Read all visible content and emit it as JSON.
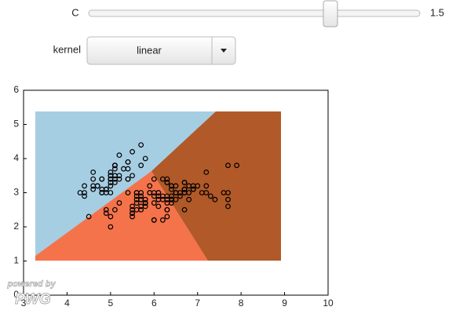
{
  "controls": {
    "C_label": "C",
    "C_value": 1.5,
    "kernel_label": "kernel",
    "kernel_value": "linear"
  },
  "watermark": {
    "line1": "powered by",
    "line2": "PWG"
  },
  "chart_data": {
    "type": "scatter",
    "color": "#000000",
    "xlim": [
      3,
      10
    ],
    "ylim": [
      0,
      6
    ],
    "xticks": [
      3,
      4,
      5,
      6,
      7,
      8,
      9,
      10
    ],
    "yticks": [
      0,
      1,
      2,
      3,
      4,
      5,
      6
    ],
    "x": [
      5.1,
      4.9,
      4.7,
      4.6,
      5.0,
      5.4,
      4.6,
      5.0,
      4.4,
      4.9,
      5.4,
      4.8,
      4.8,
      4.3,
      5.8,
      5.7,
      5.4,
      5.1,
      5.7,
      5.1,
      5.4,
      5.1,
      4.6,
      5.1,
      4.8,
      5.0,
      5.0,
      5.2,
      5.2,
      4.7,
      4.8,
      5.4,
      5.2,
      5.5,
      4.9,
      5.0,
      5.5,
      4.9,
      4.4,
      5.1,
      5.0,
      4.5,
      4.4,
      5.0,
      5.1,
      4.8,
      5.1,
      4.6,
      5.3,
      5.0,
      7.0,
      6.4,
      6.9,
      5.5,
      6.5,
      5.7,
      6.3,
      4.9,
      6.6,
      5.2,
      5.0,
      5.9,
      6.0,
      6.1,
      5.6,
      6.7,
      5.6,
      5.8,
      6.2,
      5.6,
      5.9,
      6.1,
      6.3,
      6.1,
      6.4,
      6.6,
      6.8,
      6.7,
      6.0,
      5.7,
      5.5,
      5.5,
      5.8,
      6.0,
      5.4,
      6.0,
      6.7,
      6.3,
      5.6,
      5.5,
      5.5,
      6.1,
      5.8,
      5.0,
      5.6,
      5.7,
      5.7,
      6.2,
      5.1,
      5.7,
      6.3,
      5.8,
      7.1,
      6.3,
      6.5,
      7.6,
      4.9,
      7.3,
      6.7,
      7.2,
      6.5,
      6.4,
      6.8,
      5.7,
      5.8,
      6.4,
      6.5,
      7.7,
      7.7,
      6.0,
      6.9,
      5.6,
      7.7,
      6.3,
      6.7,
      7.2,
      6.2,
      6.1,
      6.4,
      7.2,
      7.4,
      7.9,
      6.4,
      6.3,
      6.1,
      7.7,
      6.3,
      6.4,
      6.0,
      6.9,
      6.7,
      6.9,
      5.8,
      6.8,
      6.7,
      6.7,
      6.3,
      6.5,
      6.2,
      5.9
    ],
    "values": [
      3.5,
      3.0,
      3.2,
      3.1,
      3.6,
      3.9,
      3.4,
      3.4,
      2.9,
      3.1,
      3.7,
      3.4,
      3.0,
      3.0,
      4.0,
      4.4,
      3.9,
      3.5,
      3.8,
      3.8,
      3.4,
      3.7,
      3.6,
      3.3,
      3.4,
      3.0,
      3.4,
      3.5,
      3.4,
      3.2,
      3.1,
      3.4,
      4.1,
      4.2,
      3.1,
      3.2,
      3.5,
      3.1,
      3.0,
      3.4,
      3.5,
      2.3,
      3.2,
      3.5,
      3.8,
      3.0,
      3.8,
      3.2,
      3.7,
      3.3,
      3.2,
      3.2,
      3.1,
      2.3,
      2.8,
      2.8,
      3.3,
      2.4,
      2.9,
      2.7,
      2.0,
      3.0,
      2.2,
      2.9,
      2.9,
      3.1,
      3.0,
      2.7,
      2.2,
      2.5,
      3.2,
      2.8,
      2.5,
      2.8,
      2.9,
      3.0,
      2.8,
      3.0,
      2.9,
      2.6,
      2.4,
      2.4,
      2.7,
      2.7,
      3.0,
      3.4,
      3.1,
      2.3,
      3.0,
      2.5,
      2.6,
      3.0,
      2.6,
      2.3,
      2.7,
      3.0,
      2.9,
      2.9,
      2.5,
      2.8,
      3.3,
      2.7,
      3.0,
      2.9,
      3.0,
      3.0,
      2.5,
      2.9,
      2.5,
      3.6,
      3.2,
      2.7,
      3.0,
      2.5,
      2.8,
      3.2,
      3.0,
      3.8,
      2.6,
      2.2,
      3.2,
      2.8,
      2.8,
      2.7,
      3.3,
      3.2,
      2.8,
      3.0,
      2.8,
      3.0,
      2.8,
      3.8,
      2.8,
      2.8,
      2.6,
      3.0,
      3.4,
      3.1,
      3.0,
      3.1,
      3.1,
      3.1,
      2.7,
      3.2,
      3.3,
      3.0,
      2.5,
      3.0,
      3.4,
      3.0
    ]
  }
}
